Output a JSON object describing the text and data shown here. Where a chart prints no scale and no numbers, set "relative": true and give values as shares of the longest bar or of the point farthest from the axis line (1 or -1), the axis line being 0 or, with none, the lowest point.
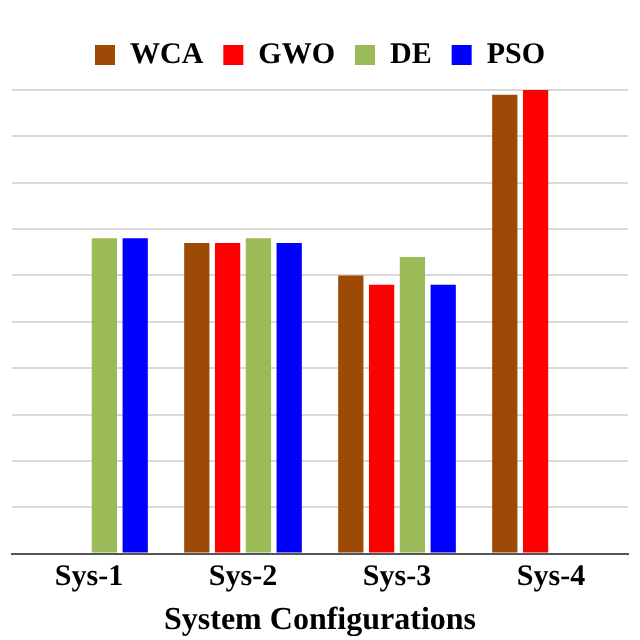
{
  "chart_data": {
    "type": "bar",
    "relative": true,
    "xlabel": "System Configurations",
    "categories": [
      "Sys-1",
      "Sys-2",
      "Sys-3",
      "Sys-4"
    ],
    "series": [
      {
        "name": "WCA",
        "color": "#9c4a06",
        "values": [
          null,
          0.67,
          0.6,
          0.99
        ]
      },
      {
        "name": "GWO",
        "color": "#ff0000",
        "values": [
          null,
          0.67,
          0.58,
          1
        ]
      },
      {
        "name": "DE",
        "color": "#9bbb59",
        "values": [
          0.68,
          0.68,
          0.64,
          null
        ]
      },
      {
        "name": "PSO",
        "color": "#0000ff",
        "values": [
          0.68,
          0.67,
          0.58,
          null
        ]
      }
    ],
    "grid": "y",
    "legend": "top"
  }
}
